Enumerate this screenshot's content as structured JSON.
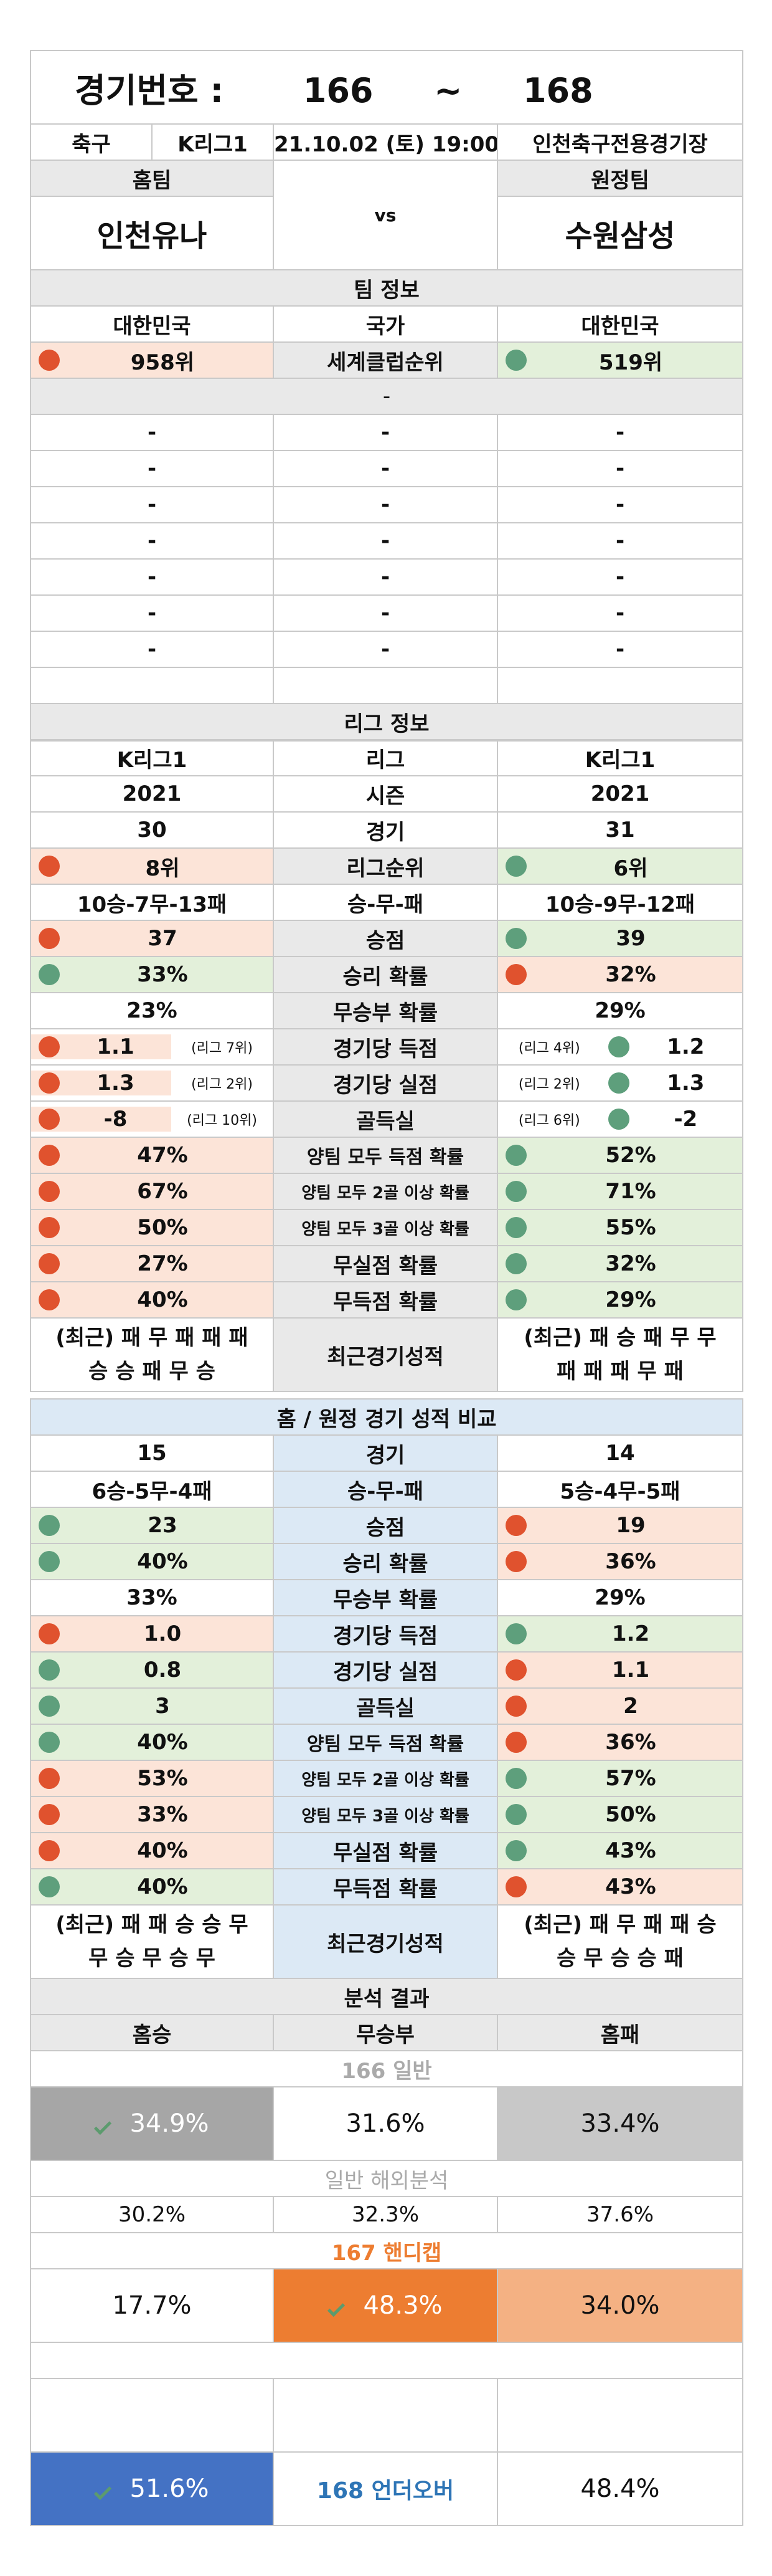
{
  "header": {
    "label": "경기번호 :",
    "range_start": "166",
    "range_sep": "~",
    "range_end": "168"
  },
  "match": {
    "sport": "축구",
    "league": "K리그1",
    "datetime": "21.10.02 (토) 19:00",
    "venue": "인천축구전용경기장",
    "home_label": "홈팀",
    "away_label": "원정팀",
    "home_team": "인천유나",
    "away_team": "수원삼성",
    "vs": "vs"
  },
  "team_info": {
    "title": "팀 정보",
    "rows": [
      {
        "label": "국가",
        "home": "대한민국",
        "away": "대한민국"
      },
      {
        "label": "세계클럽순위",
        "home": "958위",
        "away": "519위"
      }
    ],
    "blank_header": "-",
    "blank_rows": [
      [
        "-",
        "-",
        "-"
      ],
      [
        "-",
        "-",
        "-"
      ],
      [
        "-",
        "-",
        "-"
      ],
      [
        "-",
        "-",
        "-"
      ],
      [
        "-",
        "-",
        "-"
      ],
      [
        "-",
        "-",
        "-"
      ],
      [
        "-",
        "-",
        "-"
      ],
      [
        "-",
        "-",
        "-"
      ]
    ]
  },
  "league_info": {
    "title": "리그 정보",
    "rows": [
      {
        "label": "리그",
        "home": "K리그1",
        "away": "K리그1"
      },
      {
        "label": "시즌",
        "home": "2021",
        "away": "2021"
      },
      {
        "label": "경기",
        "home": "30",
        "away": "31"
      },
      {
        "label": "리그순위",
        "home": "8위",
        "away": "6위"
      },
      {
        "label": "승-무-패",
        "home": "10승-7무-13패",
        "away": "10승-9무-12패"
      },
      {
        "label": "승점",
        "home": "37",
        "away": "39"
      },
      {
        "label": "승리 확률",
        "home": "33%",
        "away": "32%"
      },
      {
        "label": "무승부 확률",
        "home": "23%",
        "away": "29%"
      },
      {
        "label": "경기당 득점",
        "home": "1.1",
        "home_rank": "(리그 7위)",
        "away": "1.2",
        "away_rank": "(리그 4위)"
      },
      {
        "label": "경기당 실점",
        "home": "1.3",
        "home_rank": "(리그 2위)",
        "away": "1.3",
        "away_rank": "(리그 2위)"
      },
      {
        "label": "골득실",
        "home": "-8",
        "home_rank": "(리그 10위)",
        "away": "-2",
        "away_rank": "(리그 6위)"
      },
      {
        "label": "양팀 모두 득점 확률",
        "home": "47%",
        "away": "52%"
      },
      {
        "label": "양팀 모두 2골 이상 확률",
        "home": "67%",
        "away": "71%"
      },
      {
        "label": "양팀 모두 3골 이상 확률",
        "home": "50%",
        "away": "55%"
      },
      {
        "label": "무실점 확률",
        "home": "27%",
        "away": "32%"
      },
      {
        "label": "무득점 확률",
        "home": "40%",
        "away": "29%"
      }
    ],
    "recent": {
      "label": "최근경기성적",
      "home_line1": "(최근) 패 무 패 패 패",
      "home_line2": "승 승 패 무 승",
      "away_line1": "(최근) 패 승 패 무 무",
      "away_line2": "패 패 패 무 패"
    }
  },
  "homeaway": {
    "title": "홈 / 원정 경기 성적 비교",
    "rows": [
      {
        "label": "경기",
        "home": "15",
        "away": "14"
      },
      {
        "label": "승-무-패",
        "home": "6승-5무-4패",
        "away": "5승-4무-5패"
      },
      {
        "label": "승점",
        "home": "23",
        "away": "19"
      },
      {
        "label": "승리 확률",
        "home": "40%",
        "away": "36%"
      },
      {
        "label": "무승부 확률",
        "home": "33%",
        "away": "29%"
      },
      {
        "label": "경기당 득점",
        "home": "1.0",
        "away": "1.2"
      },
      {
        "label": "경기당 실점",
        "home": "0.8",
        "away": "1.1"
      },
      {
        "label": "골득실",
        "home": "3",
        "away": "2"
      },
      {
        "label": "양팀 모두 득점 확률",
        "home": "40%",
        "away": "36%"
      },
      {
        "label": "양팀 모두 2골 이상 확률",
        "home": "53%",
        "away": "57%"
      },
      {
        "label": "양팀 모두 3골 이상 확률",
        "home": "33%",
        "away": "50%"
      },
      {
        "label": "무실점 확률",
        "home": "40%",
        "away": "43%"
      },
      {
        "label": "무득점 확률",
        "home": "40%",
        "away": "43%"
      }
    ],
    "recent": {
      "label": "최근경기성적",
      "home_line1": "(최근) 패 패 승 승 무",
      "home_line2": "무 승 무 승 무",
      "away_line1": "(최근) 패 무 패 패 승",
      "away_line2": "승 무 승 승 패"
    }
  },
  "analysis": {
    "title": "분석 결과",
    "home_win": "홈승",
    "draw": "무승부",
    "home_loss": "홈패",
    "general_title": "166 일반",
    "general": {
      "home": "34.9%",
      "draw": "31.6%",
      "away": "33.4%"
    },
    "overseas_title": "일반 해외분석",
    "overseas": {
      "home": "30.2%",
      "draw": "32.3%",
      "away": "37.6%"
    },
    "handicap_title": "167 핸디캡",
    "handicap": {
      "home": "17.7%",
      "draw": "48.3%",
      "away": "34.0%"
    },
    "underover_title": "168 언더오버",
    "underover": {
      "under": "51.6%",
      "over": "48.4%"
    }
  },
  "colors": {
    "orange_dot": "#e0522e",
    "green_dot": "#5e9f7c",
    "red_bg": "#fce4d8",
    "green_bg": "#e3f0da",
    "blue_bg": "#dce9f5",
    "gray_bg": "#e9e9e9",
    "accent_orange": "#ed7d31",
    "light_orange": "#f4b183",
    "accent_blue": "#4472c4",
    "dark_gray": "#a6a6a6",
    "mid_gray": "#c8c8c8",
    "check_green": "#5c9b6e"
  },
  "icons": {
    "status_dot": "circle",
    "pick_mark": "check-icon"
  }
}
